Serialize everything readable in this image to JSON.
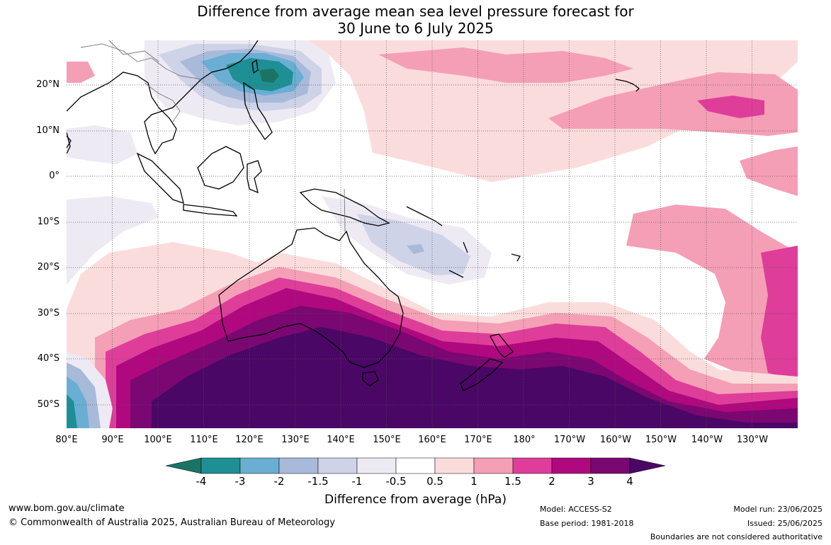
{
  "title": {
    "line1": "Difference from average mean sea level pressure forecast for",
    "line2": "30 June to 6 July 2025"
  },
  "map": {
    "lat_labels": [
      "20°N",
      "10°N",
      "0°",
      "10°S",
      "20°S",
      "30°S",
      "40°S",
      "50°S"
    ],
    "lon_labels": [
      "80°E",
      "90°E",
      "100°E",
      "110°E",
      "120°E",
      "130°E",
      "140°E",
      "150°E",
      "160°E",
      "170°E",
      "180°",
      "170°W",
      "160°W",
      "150°W",
      "140°W",
      "130°W"
    ]
  },
  "colorbar": {
    "title": "Difference from average (hPa)",
    "labels": [
      "-4",
      "-3",
      "-2",
      "-1.5",
      "-1",
      "-0.5",
      "0.5",
      "1",
      "1.5",
      "2",
      "3",
      "4"
    ],
    "colors": [
      "#1a7464",
      "#1e8f95",
      "#6aaed3",
      "#a7bada",
      "#cfd3e7",
      "#eeeaf3",
      "#ffffff",
      "#fbdcdd",
      "#f49fb6",
      "#df3d9a",
      "#b0087f",
      "#7a0772",
      "#4a0766"
    ]
  },
  "footer": {
    "url": "www.bom.gov.au/climate",
    "copyright": "© Commonwealth of Australia 2025, Australian Bureau of Meteorology",
    "model": "Model: ACCESS-S2",
    "base_period": "Base period: 1981-2018",
    "model_run": "Model run: 23/06/2025",
    "issued": "Issued: 25/06/2025",
    "disclaimer": "Boundaries are not considered authoritative"
  }
}
